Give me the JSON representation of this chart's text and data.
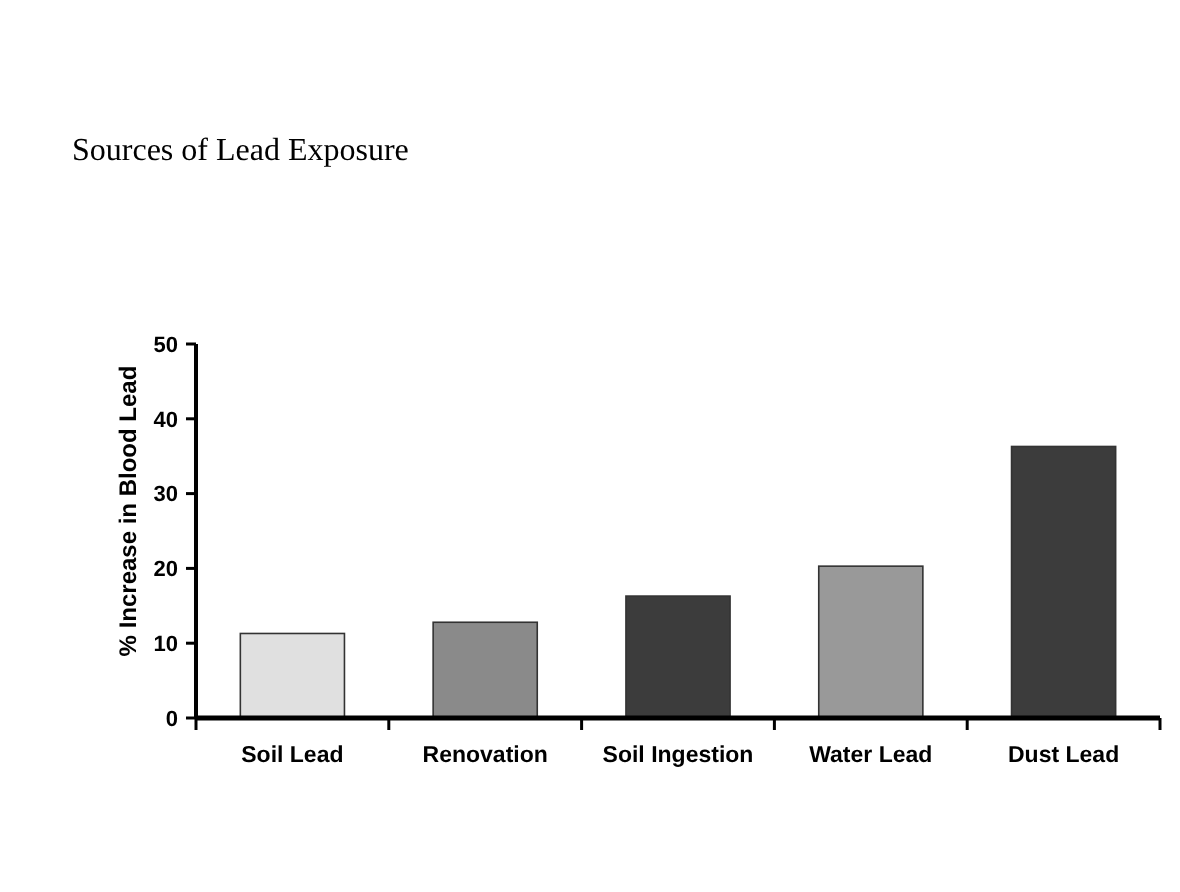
{
  "chart_data": {
    "type": "bar",
    "title": "Sources of Lead Exposure",
    "ylabel": "% Increase in Blood Lead",
    "categories": [
      "Soil Lead",
      "Renovation",
      "Soil Ingestion",
      "Water Lead",
      "Dust Lead"
    ],
    "values": [
      11.3,
      12.8,
      16.3,
      20.3,
      36.3
    ],
    "colors": [
      "#e0e0e0",
      "#8a8a8a",
      "#3c3c3c",
      "#999999",
      "#3c3c3c"
    ],
    "ylim": [
      0,
      50
    ],
    "yticks": [
      0,
      10,
      20,
      30,
      40,
      50
    ],
    "grid": false
  }
}
